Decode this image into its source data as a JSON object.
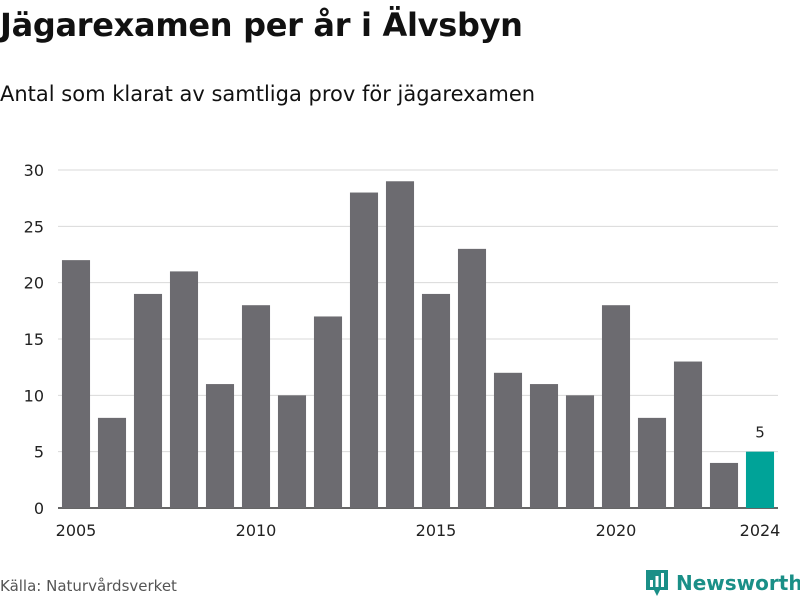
{
  "header": {
    "title": "Jägarexamen per år i Älvsbyn",
    "subtitle": "Antal som klarat av samtliga prov för jägarexamen"
  },
  "footer": {
    "source": "Källa: Naturvårdsverket",
    "brand": "Newsworthy"
  },
  "colors": {
    "bar": "#6c6b70",
    "highlight": "#00a398",
    "brand": "#1a8f87",
    "grid": "#d9d9d9"
  },
  "chart_data": {
    "type": "bar",
    "categories": [
      2005,
      2006,
      2007,
      2008,
      2009,
      2010,
      2011,
      2012,
      2013,
      2014,
      2015,
      2016,
      2017,
      2018,
      2019,
      2020,
      2021,
      2022,
      2023,
      2024
    ],
    "values": [
      22,
      8,
      19,
      21,
      11,
      18,
      10,
      17,
      28,
      29,
      19,
      23,
      12,
      11,
      10,
      18,
      8,
      13,
      4,
      5
    ],
    "title": "Jägarexamen per år i Älvsbyn",
    "subtitle": "Antal som klarat av samtliga prov för jägarexamen",
    "ylim": [
      0,
      30
    ],
    "yticks": [
      0,
      5,
      10,
      15,
      20,
      25,
      30
    ],
    "xticks": [
      2005,
      2010,
      2015,
      2020,
      2024
    ],
    "highlight_category": 2024,
    "annotations": [
      {
        "x": 2024,
        "text": "5"
      }
    ],
    "grid": true,
    "legend": "none"
  }
}
